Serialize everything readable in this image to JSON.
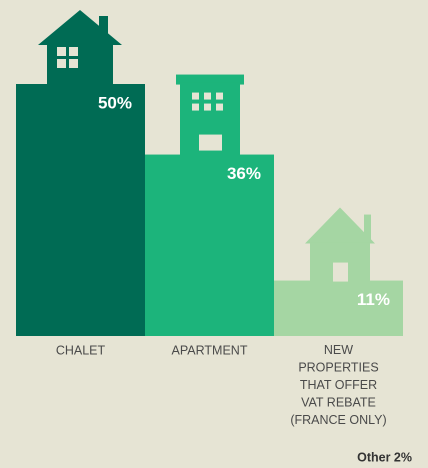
{
  "chart_data": {
    "type": "bar",
    "categories": [
      "CHALET",
      "APARTMENT",
      "NEW PROPERTIES THAT OFFER VAT REBATE (FRANCE ONLY)"
    ],
    "values": [
      50,
      36,
      11
    ],
    "value_labels": [
      "50%",
      "36%",
      "11%"
    ],
    "colors": [
      "#006b54",
      "#1cb47b",
      "#a5d6a3"
    ],
    "ylim": [
      0,
      50
    ],
    "annotation": "Other 2%"
  }
}
